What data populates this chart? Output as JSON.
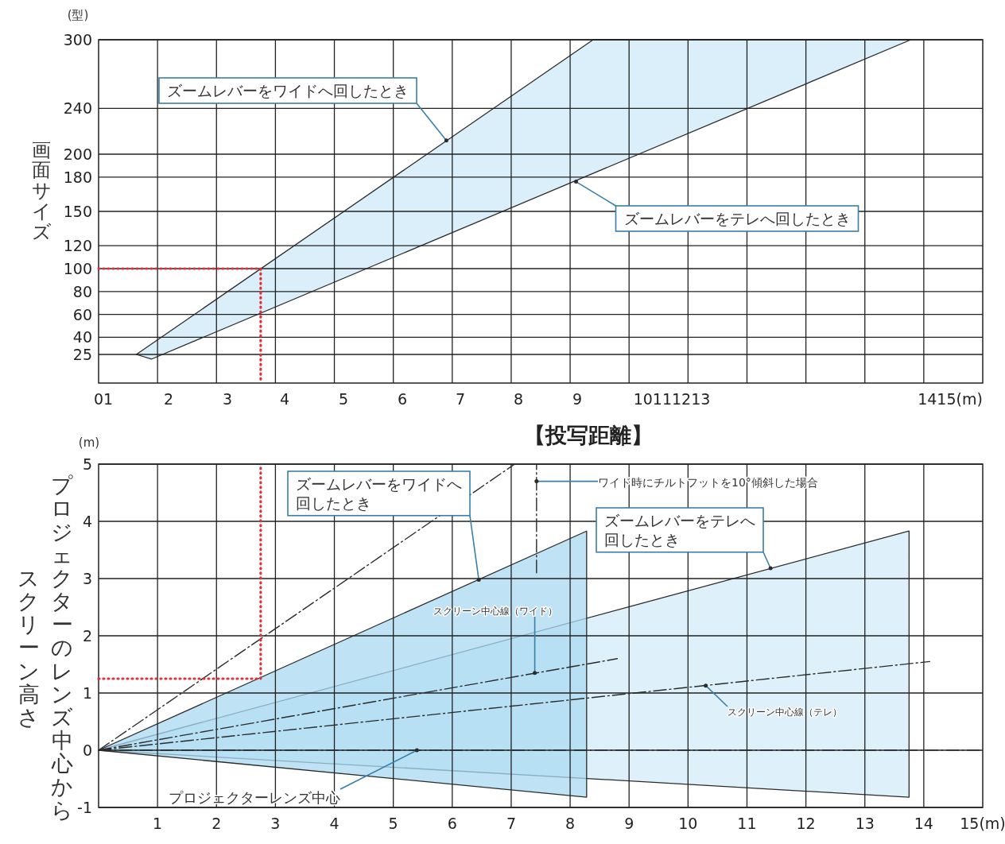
{
  "chart_data": [
    {
      "type": "line",
      "xlabel": "【投写距離】",
      "ylabel": "画面サイズ",
      "xlim": [
        0,
        15
      ],
      "ylim": [
        0,
        300
      ],
      "tick_labels": "y",
      "xticks": [
        {
          "value": 1,
          "label": null
        },
        {
          "value": 2,
          "label": null
        },
        {
          "value": 3,
          "label": null
        },
        {
          "value": 4,
          "label": null
        },
        {
          "value": 5,
          "label": null
        },
        {
          "value": 6,
          "label": null
        },
        {
          "value": 7,
          "label": null
        },
        {
          "value": 8,
          "label": null
        },
        {
          "value": 9,
          "label": null
        },
        {
          "value": 10,
          "label": null
        },
        {
          "value": 11,
          "label": null
        },
        {
          "value": 12,
          "label": null
        },
        {
          "value": 13,
          "label": null
        },
        {
          "value": 14,
          "label": null
        }
      ],
      "yticks": [
        25,
        40,
        60,
        80,
        100,
        120,
        150,
        180,
        200,
        240,
        300
      ],
      "grid": true,
      "series": [
        {
          "type": "area",
          "color": "#cdeaf7",
          "x": [
            0.64,
            8.39,
            13.78,
            0.9
          ],
          "values": [
            25,
            300,
            300,
            21
          ]
        },
        {
          "type": "line",
          "color": "#e0303a",
          "line_style": "dotted",
          "x": [
            0,
            2.75,
            2.75
          ],
          "values": [
            100,
            100,
            0
          ]
        }
      ],
      "annotations": [
        "(型)",
        {
          "text": "ズームレバーをワイドへ回したとき",
          "x": 5.9,
          "y": 212
        },
        {
          "text": "ズームレバーをテレへ回したとき",
          "x": 8.1,
          "y": 176
        },
        "01",
        "2",
        "3",
        "4",
        "5",
        "6",
        "7",
        "8",
        "9",
        "10111213",
        "1415(m)"
      ]
    },
    {
      "type": "line",
      "ylabel": "プロジェクターのレンズ中心から",
      "xlim": [
        0,
        15
      ],
      "ylim": [
        -1,
        5
      ],
      "xticks": [
        1,
        2,
        3,
        4,
        5,
        6,
        7,
        8,
        9,
        10,
        11,
        12,
        13,
        14,
        {
          "value": 15,
          "label": "15(m)"
        }
      ],
      "yticks": [
        -1,
        0,
        1,
        2,
        3,
        4,
        5
      ],
      "grid": true,
      "series": [
        {
          "type": "area",
          "color": "#d3ecf8",
          "x": [
            0,
            13.75,
            13.75
          ],
          "values": [
            0,
            3.83,
            -0.82
          ]
        },
        {
          "type": "area",
          "color": "#a9d9f1",
          "x": [
            0,
            8.28,
            8.28
          ],
          "values": [
            0,
            3.83,
            -0.82
          ]
        },
        {
          "type": "line",
          "color": "#2b2b2b",
          "line_style": "dashed",
          "x": [
            0,
            8.8
          ],
          "values": [
            0,
            1.6
          ]
        },
        {
          "type": "line",
          "color": "#2b2b2b",
          "line_style": "dashed",
          "x": [
            0,
            14.1
          ],
          "values": [
            0,
            1.55
          ]
        },
        {
          "type": "line",
          "color": "#2b2b2b",
          "line_style": "dashed",
          "x": [
            0,
            7.06
          ],
          "values": [
            0,
            5
          ]
        },
        {
          "type": "line",
          "color": "#2b2b2b",
          "line_style": "dashed",
          "x": [
            7.43,
            7.43
          ],
          "values": [
            3.1,
            5
          ]
        },
        {
          "type": "line",
          "color": "#e0303a",
          "line_style": "dotted",
          "x": [
            0,
            2.75,
            2.75
          ],
          "values": [
            1.25,
            1.25,
            5
          ]
        }
      ],
      "ref_lines": [
        {
          "axis": "y",
          "value": 0,
          "line_style": "dashed",
          "color": "#2b2b2b"
        }
      ],
      "annotations": [
        "(m)",
        {
          "text": "ズームレバーをワイドへ回したとき",
          "x": 6.45,
          "y": 2.98
        },
        {
          "text": "ズームレバーをテレへ回したとき",
          "x": 11.4,
          "y": 3.18
        },
        {
          "text": "ワイド時にチルトフットを10°傾斜した場合",
          "x": 7.43,
          "y": 4.7
        },
        {
          "text": "スクリーン中心線（ワイド）",
          "x": 7.4,
          "y": 1.35
        },
        {
          "text": "スクリーン中心線（テレ）",
          "x": 10.3,
          "y": 1.13
        },
        {
          "text": "プロジェクターレンズ中心",
          "x": 5.4,
          "y": 0
        },
        "スクリーン高さ"
      ]
    }
  ]
}
